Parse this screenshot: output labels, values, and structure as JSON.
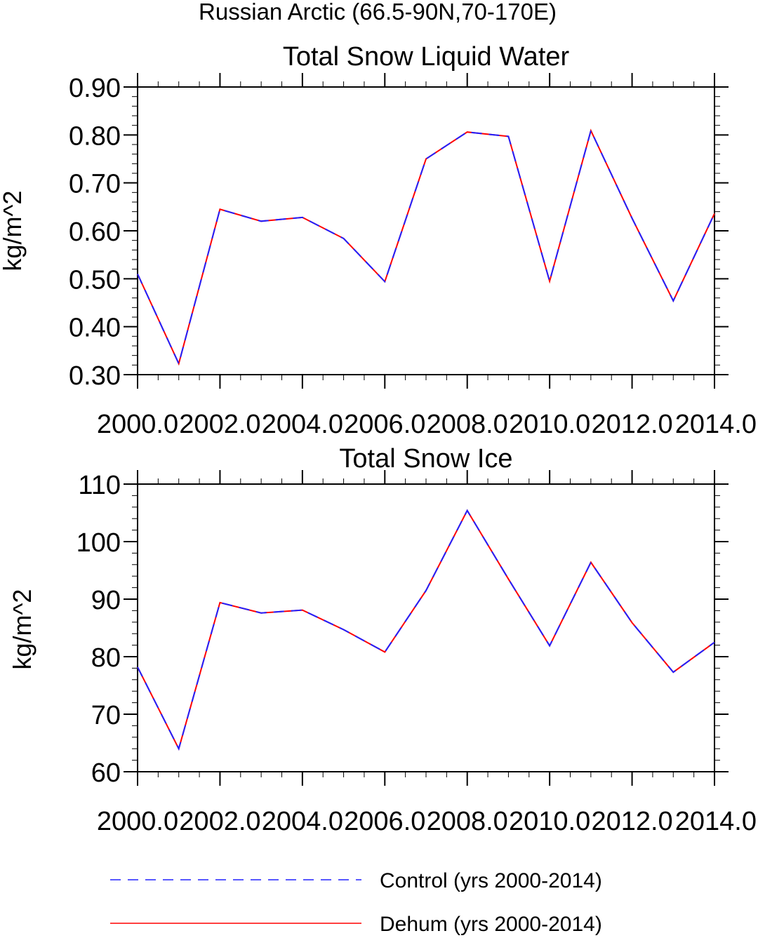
{
  "figure": {
    "title": "Russian Arctic (66.5-90N,70-170E)"
  },
  "colors": {
    "control": "#2020ff",
    "dehum": "#ff0000",
    "axis": "#000000"
  },
  "legend": {
    "placement": "bottom",
    "items": [
      {
        "label": "Control (yrs 2000-2014)",
        "style": "dashed",
        "color": "#2020ff"
      },
      {
        "label": "Dehum (yrs 2000-2014)",
        "style": "solid",
        "color": "#ff0000"
      }
    ]
  },
  "chart_data": [
    {
      "type": "line",
      "title": "Total Snow Liquid Water",
      "xlabel": "",
      "ylabel": "kg/m^2",
      "xlim": [
        2000,
        2014
      ],
      "ylim": [
        0.3,
        0.9
      ],
      "x_ticks": [
        2000,
        2002,
        2004,
        2006,
        2008,
        2010,
        2012,
        2014
      ],
      "x_tick_labels": [
        "2000.0",
        "2002.0",
        "2004.0",
        "2006.0",
        "2008.0",
        "2010.0",
        "2012.0",
        "2014.0"
      ],
      "y_ticks": [
        0.3,
        0.4,
        0.5,
        0.6,
        0.7,
        0.8,
        0.9
      ],
      "y_tick_labels": [
        "0.30",
        "0.40",
        "0.50",
        "0.60",
        "0.70",
        "0.80",
        "0.90"
      ],
      "y_minor_step": 0.02,
      "x_minor_step": 0.5,
      "grid": false,
      "x": [
        2000,
        2001,
        2002,
        2003,
        2004,
        2005,
        2006,
        2007,
        2008,
        2009,
        2010,
        2011,
        2012,
        2013,
        2014
      ],
      "series": [
        {
          "name": "Control (yrs 2000-2014)",
          "values": [
            0.51,
            0.323,
            0.645,
            0.62,
            0.628,
            0.584,
            0.494,
            0.75,
            0.806,
            0.797,
            0.495,
            0.809,
            0.626,
            0.454,
            0.636
          ]
        },
        {
          "name": "Dehum (yrs 2000-2014)",
          "values": [
            0.51,
            0.323,
            0.645,
            0.62,
            0.628,
            0.584,
            0.494,
            0.75,
            0.806,
            0.797,
            0.495,
            0.809,
            0.626,
            0.454,
            0.636
          ]
        }
      ]
    },
    {
      "type": "line",
      "title": "Total Snow Ice",
      "xlabel": "",
      "ylabel": "kg/m^2",
      "xlim": [
        2000,
        2014
      ],
      "ylim": [
        60,
        110
      ],
      "x_ticks": [
        2000,
        2002,
        2004,
        2006,
        2008,
        2010,
        2012,
        2014
      ],
      "x_tick_labels": [
        "2000.0",
        "2002.0",
        "2004.0",
        "2006.0",
        "2008.0",
        "2010.0",
        "2012.0",
        "2014.0"
      ],
      "y_ticks": [
        60,
        70,
        80,
        90,
        100,
        110
      ],
      "y_tick_labels": [
        "60",
        "70",
        "80",
        "90",
        "100",
        "110"
      ],
      "y_minor_step": 2,
      "x_minor_step": 0.5,
      "grid": false,
      "x": [
        2000,
        2001,
        2002,
        2003,
        2004,
        2005,
        2006,
        2007,
        2008,
        2009,
        2010,
        2011,
        2012,
        2013,
        2014
      ],
      "series": [
        {
          "name": "Control (yrs 2000-2014)",
          "values": [
            78.2,
            64.0,
            89.4,
            87.6,
            88.1,
            84.7,
            80.8,
            91.5,
            105.4,
            93.5,
            81.9,
            96.4,
            85.9,
            77.3,
            82.5
          ]
        },
        {
          "name": "Dehum (yrs 2000-2014)",
          "values": [
            78.2,
            64.0,
            89.4,
            87.6,
            88.1,
            84.7,
            80.8,
            91.5,
            105.4,
            93.5,
            81.9,
            96.4,
            85.9,
            77.3,
            82.5
          ]
        }
      ]
    }
  ]
}
